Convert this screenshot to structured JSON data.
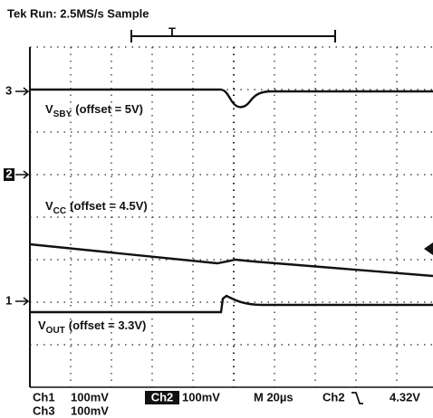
{
  "header": {
    "title": "Tek Run: 2.5MS/s Sample",
    "trigger_marker": "T"
  },
  "channel_markers": [
    "3",
    "2",
    "1"
  ],
  "traces": [
    {
      "label": "V",
      "subscript": "SBY",
      "note": "(offset = 5V)"
    },
    {
      "label": "V",
      "subscript": "CC",
      "note": "(offset = 4.5V)"
    },
    {
      "label": "V",
      "subscript": "OUT",
      "note": "(offset = 3.3V)"
    }
  ],
  "readout": {
    "ch1": "Ch1",
    "ch1_scale": "100mV",
    "ch2": "Ch2",
    "ch2_scale": "100mV",
    "timebase": "M 20µs",
    "trigger_source": "Ch2",
    "trigger_level": "4.32V",
    "ch3": "Ch3",
    "ch3_scale": "100mV"
  }
}
